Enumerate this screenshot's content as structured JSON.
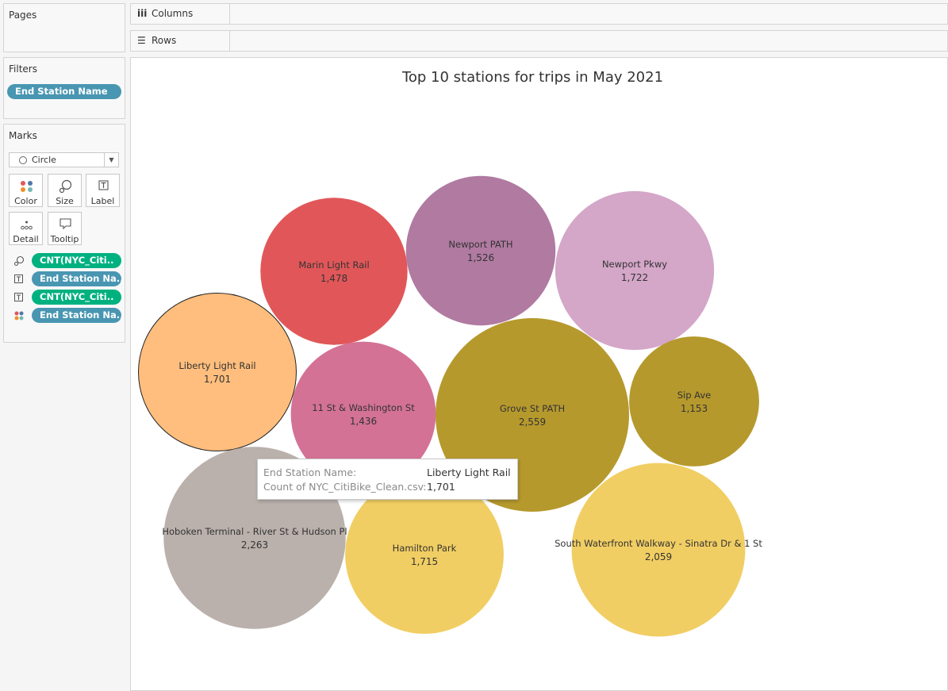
{
  "side": {
    "pages_title": "Pages",
    "filters_title": "Filters",
    "filter_pill": "End Station Name",
    "marks_title": "Marks",
    "mark_type": "Circle",
    "buttons": {
      "color": "Color",
      "size": "Size",
      "label": "Label",
      "detail": "Detail",
      "tooltip": "Tooltip"
    },
    "shelf": [
      {
        "icon": "size-icon",
        "pill": "CNT(NYC_Citi..",
        "color": "green"
      },
      {
        "icon": "label-icon",
        "pill": "End Station Na..",
        "color": "blue"
      },
      {
        "icon": "label-icon",
        "pill": "CNT(NYC_Citi..",
        "color": "green"
      },
      {
        "icon": "color-icon",
        "pill": "End Station Na..",
        "color": "blue"
      }
    ]
  },
  "toolbar": {
    "columns": "Columns",
    "rows": "Rows",
    "columns_glyph": "iii",
    "rows_glyph": "☰"
  },
  "tooltip": {
    "k1": "End Station Name:",
    "v1": "Liberty Light Rail",
    "k2": "Count of NYC_CitiBike_Clean.csv:",
    "v2": "1,701"
  },
  "chart_data": {
    "type": "bubble",
    "title": "Top 10 stations for trips in May 2021",
    "measure": "Count of NYC_CitiBike_Clean.csv",
    "stations": [
      {
        "name": "Marin Light Rail",
        "value": 1478,
        "label": "1,478",
        "color": "#e15759"
      },
      {
        "name": "Newport PATH",
        "value": 1526,
        "label": "1,526",
        "color": "#b07aa1"
      },
      {
        "name": "Newport Pkwy",
        "value": 1722,
        "label": "1,722",
        "color": "#d4a6c8"
      },
      {
        "name": "Liberty Light Rail",
        "value": 1701,
        "label": "1,701",
        "color": "#ffbe7d"
      },
      {
        "name": "11 St & Washington St",
        "value": 1436,
        "label": "1,436",
        "color": "#d37295"
      },
      {
        "name": "Grove St PATH",
        "value": 2559,
        "label": "2,559",
        "color": "#b6992d"
      },
      {
        "name": "Sip Ave",
        "value": 1153,
        "label": "1,153",
        "color": "#b6992d"
      },
      {
        "name": "Hoboken Terminal - River St & Hudson Pl",
        "value": 2263,
        "label": "2,263",
        "color": "#bab0ac"
      },
      {
        "name": "Hamilton Park",
        "value": 1715,
        "label": "1,715",
        "color": "#f1ce63"
      },
      {
        "name": "South Waterfront Walkway - Sinatra Dr & 1 St",
        "value": 2059,
        "label": "2,059",
        "color": "#f1ce63"
      }
    ],
    "highlighted": "Liberty Light Rail"
  }
}
